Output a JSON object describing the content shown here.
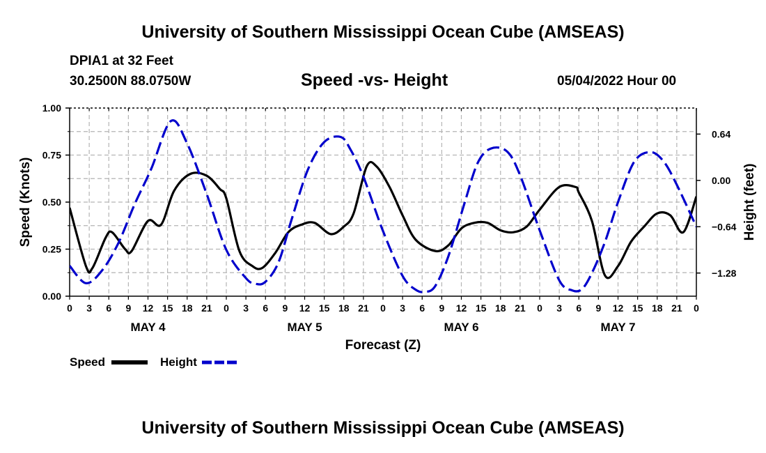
{
  "header": {
    "title": "University of Southern Mississippi Ocean Cube (AMSEAS)",
    "station": "DPIA1 at 32 Feet",
    "coords": "30.2500N  88.0750W",
    "subtitle": "Speed -vs- Height",
    "datetime": "05/04/2022 Hour 00"
  },
  "footer": {
    "title": "University of Southern Mississippi Ocean Cube (AMSEAS)"
  },
  "legend": {
    "speed_label": "Speed",
    "height_label": "Height",
    "speed_color": "#000000",
    "height_color": "#0000cc"
  },
  "chart_data": {
    "type": "line",
    "title": "Speed -vs- Height",
    "xlabel": "Forecast (Z)",
    "ylabel_left": "Speed (Knots)",
    "ylabel_right": "Height (feet)",
    "xlim": [
      0,
      96
    ],
    "ylim_left": [
      0,
      1.0
    ],
    "ylim_right": [
      -1.6,
      1.0
    ],
    "x_tick_labels": [
      "0",
      "3",
      "6",
      "9",
      "12",
      "15",
      "18",
      "21",
      "0",
      "3",
      "6",
      "9",
      "12",
      "15",
      "18",
      "21",
      "0",
      "3",
      "6",
      "9",
      "12",
      "15",
      "18",
      "21",
      "0",
      "3",
      "6",
      "9",
      "12",
      "15",
      "18",
      "21",
      "0"
    ],
    "left_ticks": [
      "0.00",
      "0.25",
      "0.50",
      "0.75",
      "1.00"
    ],
    "right_ticks": [
      "0.64",
      "0.00",
      "−0.64",
      "−1.28"
    ],
    "day_labels": [
      "MAY 4",
      "MAY 5",
      "MAY 6",
      "MAY 7"
    ],
    "grid": true,
    "series": [
      {
        "name": "Speed",
        "axis": "left",
        "x": [
          0,
          2.5,
          3.5,
          5.5,
          6.5,
          8.5,
          9.5,
          12,
          14,
          16,
          18.5,
          21,
          23,
          24,
          26,
          28,
          29.5,
          31.5,
          33.5,
          35.5,
          37.5,
          40,
          42,
          43.5,
          45.5,
          47,
          49,
          51,
          53,
          56,
          58,
          60,
          62,
          64,
          66,
          68,
          70,
          72,
          75,
          77.5,
          78,
          80,
          82,
          84,
          86,
          88,
          90,
          92,
          94,
          96
        ],
        "values": [
          0.47,
          0.16,
          0.15,
          0.31,
          0.34,
          0.25,
          0.24,
          0.4,
          0.38,
          0.56,
          0.65,
          0.64,
          0.57,
          0.52,
          0.24,
          0.16,
          0.15,
          0.23,
          0.34,
          0.38,
          0.39,
          0.33,
          0.37,
          0.44,
          0.69,
          0.69,
          0.58,
          0.43,
          0.3,
          0.24,
          0.27,
          0.36,
          0.39,
          0.39,
          0.35,
          0.34,
          0.37,
          0.46,
          0.58,
          0.58,
          0.55,
          0.4,
          0.11,
          0.16,
          0.29,
          0.37,
          0.44,
          0.43,
          0.34,
          0.53
        ]
      },
      {
        "name": "Height",
        "axis": "right",
        "x": [
          0,
          2.5,
          5,
          7.5,
          10,
          12.5,
          15.5,
          18,
          21,
          24,
          27,
          28.5,
          30,
          32,
          34,
          36.5,
          39,
          41.5,
          43,
          45,
          48,
          51,
          53,
          54.5,
          56,
          58,
          60.5,
          62.5,
          64.5,
          67,
          69,
          72,
          75,
          77,
          78.5,
          80,
          82,
          84,
          86.5,
          89,
          91,
          93,
          96
        ],
        "values": [
          -1.18,
          -1.42,
          -1.24,
          -0.86,
          -0.32,
          0.16,
          0.82,
          0.51,
          -0.19,
          -0.96,
          -1.35,
          -1.43,
          -1.4,
          -1.13,
          -0.54,
          0.15,
          0.53,
          0.6,
          0.43,
          0.05,
          -0.7,
          -1.32,
          -1.51,
          -1.54,
          -1.46,
          -1.05,
          -0.31,
          0.24,
          0.44,
          0.4,
          0.07,
          -0.69,
          -1.38,
          -1.52,
          -1.5,
          -1.28,
          -0.85,
          -0.3,
          0.26,
          0.39,
          0.26,
          -0.06,
          -0.64
        ]
      }
    ]
  }
}
